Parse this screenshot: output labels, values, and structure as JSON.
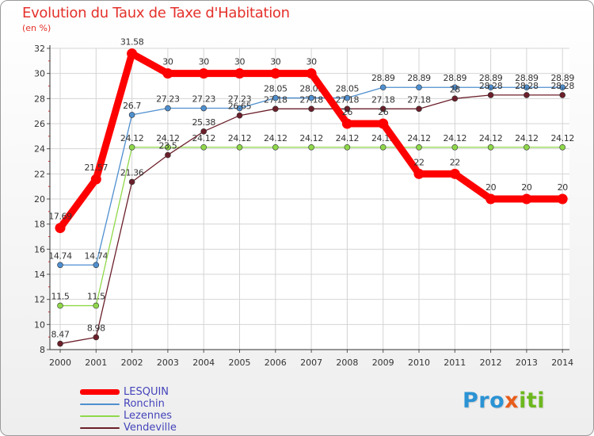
{
  "header": {
    "title": "Evolution du Taux de Taxe d'Habitation",
    "unit_label": "(en %)"
  },
  "logo": {
    "part1": "Pro",
    "part2": "x",
    "part3": "iti"
  },
  "chart_data": {
    "type": "line",
    "title": "Evolution du Taux de Taxe d'Habitation",
    "ylabel": "(en %)",
    "xlabel": "",
    "ylim": [
      8,
      32
    ],
    "yticks": [
      8,
      10,
      12,
      14,
      16,
      18,
      20,
      22,
      24,
      26,
      28,
      30,
      32
    ],
    "grid": true,
    "legend_position": "bottom-left",
    "x": [
      "2000",
      "2001",
      "2002",
      "2003",
      "2004",
      "2005",
      "2006",
      "2007",
      "2008",
      "2009",
      "2010",
      "2011",
      "2012",
      "2013",
      "2014"
    ],
    "series": [
      {
        "name": "Ronchin",
        "color": "#4f8fcf",
        "values": [
          14.74,
          14.74,
          26.7,
          27.23,
          27.23,
          27.23,
          28.05,
          28.05,
          28.05,
          28.89,
          28.89,
          28.89,
          28.89,
          28.89,
          28.89
        ],
        "labels": [
          "14.74",
          "14.74",
          "26.7",
          "27.23",
          "27.23",
          "27.23",
          "28.05",
          "28.05",
          "28.05",
          "28.89",
          "28.89",
          "28.89",
          "28.89",
          "28.89",
          "28.89"
        ]
      },
      {
        "name": "Lezennes",
        "color": "#8fd84a",
        "values": [
          11.5,
          11.5,
          24.12,
          24.12,
          24.12,
          24.12,
          24.12,
          24.12,
          24.12,
          24.12,
          24.12,
          24.12,
          24.12,
          24.12,
          24.12
        ],
        "labels": [
          "11.5",
          "11.5",
          "24.12",
          "24.12",
          "24.12",
          "24.12",
          "24.12",
          "24.12",
          "24.12",
          "24.12",
          "24.12",
          "24.12",
          "24.12",
          "24.12",
          "24.12"
        ]
      },
      {
        "name": "Vendeville",
        "color": "#6b1f2a",
        "values": [
          8.47,
          8.98,
          21.36,
          23.5,
          25.38,
          26.65,
          27.18,
          27.18,
          27.18,
          27.18,
          27.18,
          28,
          28.28,
          28.28,
          28.28
        ],
        "labels": [
          "8.47",
          "8.98",
          "21.36",
          "23.5",
          "25.38",
          "26.65",
          "27.18",
          "27.18",
          "27.18",
          "27.18",
          "27.18",
          "28",
          "28.28",
          "28.28",
          "28.28"
        ]
      },
      {
        "name": "LESQUIN",
        "color": "#ff0000",
        "values": [
          17.69,
          21.57,
          31.58,
          30,
          30,
          30,
          30,
          30,
          26,
          26,
          22,
          22,
          20,
          20,
          20
        ],
        "labels": [
          "17.69",
          "21.57",
          "31.58",
          "30",
          "30",
          "30",
          "30",
          "30",
          "26",
          "26",
          "22",
          "22",
          "20",
          "20",
          "20"
        ]
      }
    ],
    "legend": [
      "LESQUIN",
      "Ronchin",
      "Lezennes",
      "Vendeville"
    ]
  }
}
